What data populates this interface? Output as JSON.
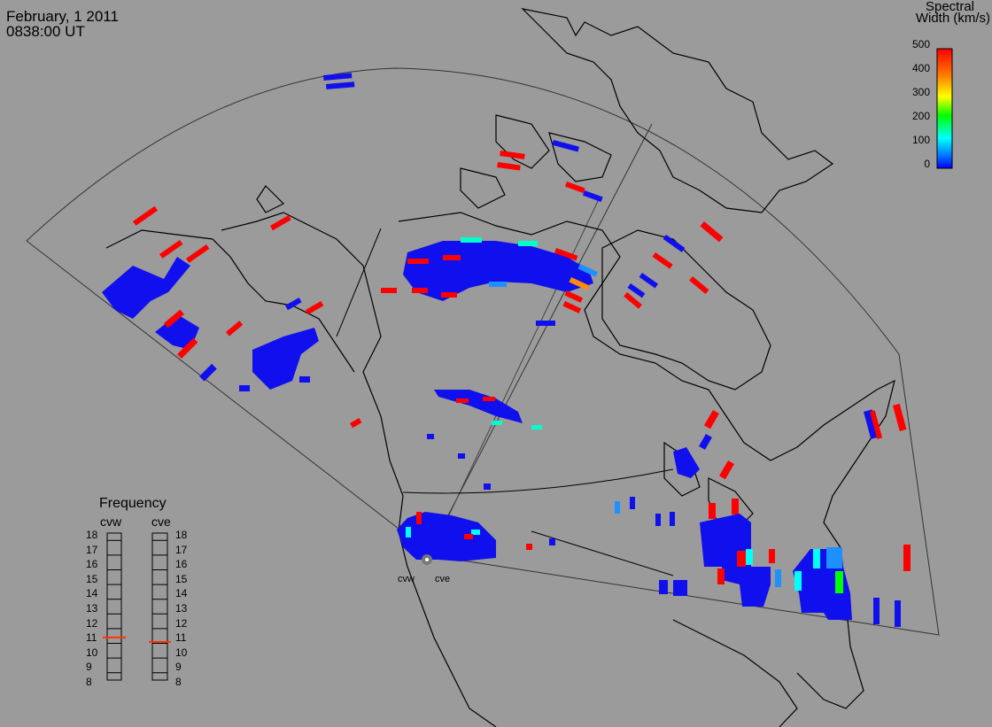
{
  "header": {
    "date": "February, 1 2011",
    "time": "0838:00 UT"
  },
  "color_scale": {
    "title_line1": "Spectral",
    "title_line2": "Width (km/s)",
    "ticks": [
      "500",
      "400",
      "300",
      "200",
      "100",
      "0"
    ],
    "colors": [
      "#ff0000",
      "#ff8c00",
      "#ffff00",
      "#00ff00",
      "#00ffff",
      "#0000ff"
    ]
  },
  "radars": {
    "west_label": "cvw",
    "east_label": "cve"
  },
  "frequency": {
    "title": "Frequency",
    "col_left": "cvw",
    "col_right": "cve",
    "ticks": [
      "18",
      "17",
      "16",
      "15",
      "14",
      "13",
      "12",
      "11",
      "10",
      "9",
      "8"
    ],
    "cvw_value": 10.9,
    "cve_value": 10.6,
    "marker_color": "#ff3300"
  }
}
